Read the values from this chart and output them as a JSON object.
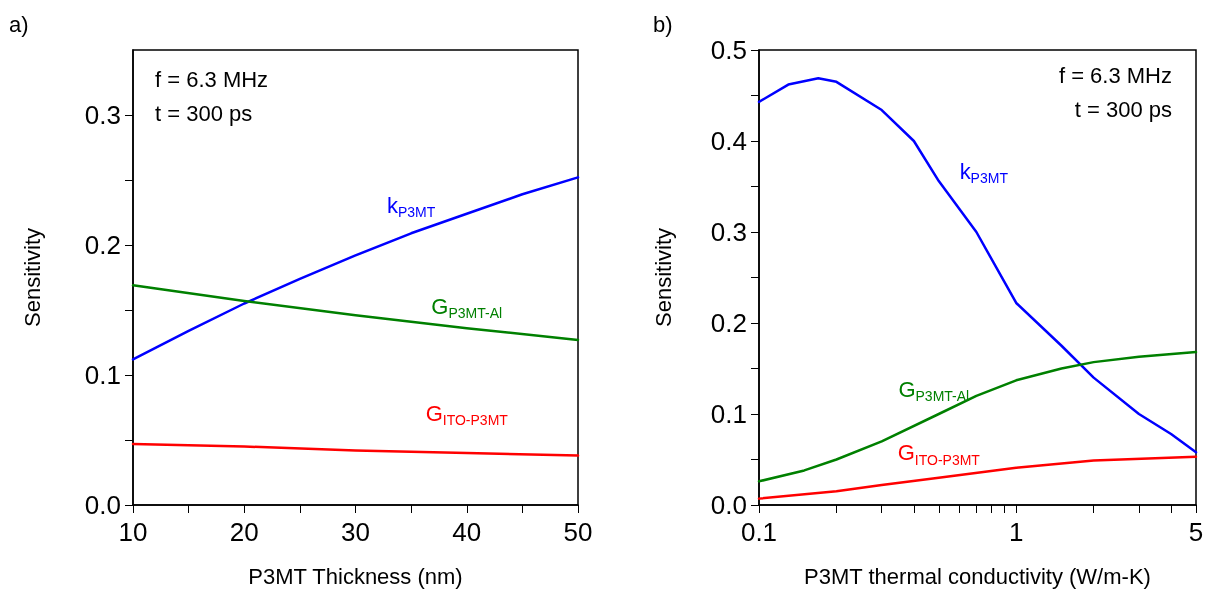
{
  "chart_data": [
    {
      "type": "line",
      "title": "a)",
      "xlabel": "P3MT Thickness (nm)",
      "ylabel": "Sensitivity",
      "annotations": [
        "f = 6.3 MHz",
        "t = 300 ps"
      ],
      "xlim": [
        10,
        50
      ],
      "xticks": [
        10,
        {
          "value": 15,
          "label": null
        },
        20,
        {
          "value": 25,
          "label": null
        },
        30,
        {
          "value": 35,
          "label": null
        },
        40,
        {
          "value": 45,
          "label": null
        },
        50
      ],
      "ylim": [
        0,
        0.35
      ],
      "yticks": [
        {
          "value": 0,
          "label": "0.0"
        },
        {
          "value": 0.05,
          "label": null
        },
        0.1,
        {
          "value": 0.15,
          "label": null
        },
        0.2,
        {
          "value": 0.25,
          "label": null
        },
        0.3
      ],
      "grid": false,
      "legend": false,
      "marker": "none",
      "line_style": "solid",
      "series": [
        {
          "name": "k$_{P3MT}$",
          "color": "#0000ff",
          "x": [
            10,
            15,
            20,
            25,
            30,
            35,
            40,
            45,
            50
          ],
          "values": [
            0.112,
            0.134,
            0.155,
            0.174,
            0.192,
            0.209,
            0.224,
            0.239,
            0.252
          ]
        },
        {
          "name": "G$_{P3MT-Al}$",
          "color": "#008000",
          "x": [
            10,
            20,
            30,
            40,
            50
          ],
          "values": [
            0.169,
            0.157,
            0.146,
            0.136,
            0.127
          ]
        },
        {
          "name": "G$_{ITO-P3MT}$",
          "color": "#ff0000",
          "x": [
            10,
            20,
            30,
            40,
            50
          ],
          "values": [
            0.047,
            0.045,
            0.042,
            0.04,
            0.038
          ]
        }
      ]
    },
    {
      "type": "line",
      "title": "b)",
      "xlabel": "P3MT thermal conductivity (W/m-K)",
      "ylabel": "Sensitivity",
      "annotations": [
        "f = 6.3 MHz",
        "t = 300 ps"
      ],
      "log": "x",
      "xlim": [
        0.1,
        5
      ],
      "xticks": [
        0.1,
        {
          "value": 0.2,
          "label": null
        },
        {
          "value": 0.3,
          "label": null
        },
        {
          "value": 0.4,
          "label": null
        },
        {
          "value": 0.5,
          "label": null
        },
        {
          "value": 0.6,
          "label": null
        },
        {
          "value": 0.7,
          "label": null
        },
        {
          "value": 0.8,
          "label": null
        },
        {
          "value": 0.9,
          "label": null
        },
        1,
        {
          "value": 2,
          "label": null
        },
        {
          "value": 3,
          "label": null
        },
        {
          "value": 4,
          "label": null
        },
        5
      ],
      "ylim": [
        0,
        0.5
      ],
      "yticks": [
        {
          "value": 0,
          "label": "0.0"
        },
        {
          "value": 0.05,
          "label": null
        },
        0.1,
        {
          "value": 0.15,
          "label": null
        },
        0.2,
        {
          "value": 0.25,
          "label": null
        },
        0.3,
        {
          "value": 0.35,
          "label": null
        },
        0.4,
        {
          "value": 0.45,
          "label": null
        },
        0.5
      ],
      "grid": false,
      "legend": false,
      "marker": "none",
      "line_style": "solid",
      "series": [
        {
          "name": "k$_{P3MT}$",
          "color": "#0000ff",
          "x": [
            0.1,
            0.13,
            0.17,
            0.2,
            0.3,
            0.4,
            0.5,
            0.7,
            1,
            1.5,
            2,
            3,
            4,
            5
          ],
          "values": [
            0.443,
            0.462,
            0.469,
            0.465,
            0.434,
            0.4,
            0.356,
            0.3,
            0.222,
            0.175,
            0.14,
            0.1,
            0.078,
            0.058
          ]
        },
        {
          "name": "G$_{P3MT-Al}$",
          "color": "#008000",
          "x": [
            0.1,
            0.15,
            0.2,
            0.3,
            0.5,
            0.7,
            1,
            1.5,
            2,
            3,
            5
          ],
          "values": [
            0.026,
            0.038,
            0.05,
            0.07,
            0.1,
            0.12,
            0.137,
            0.15,
            0.157,
            0.163,
            0.168
          ]
        },
        {
          "name": "G$_{ITO-P3MT}$",
          "color": "#ff0000",
          "x": [
            0.1,
            0.2,
            0.3,
            0.5,
            1,
            2,
            5
          ],
          "values": [
            0.007,
            0.015,
            0.022,
            0.03,
            0.041,
            0.049,
            0.053
          ]
        }
      ]
    }
  ]
}
